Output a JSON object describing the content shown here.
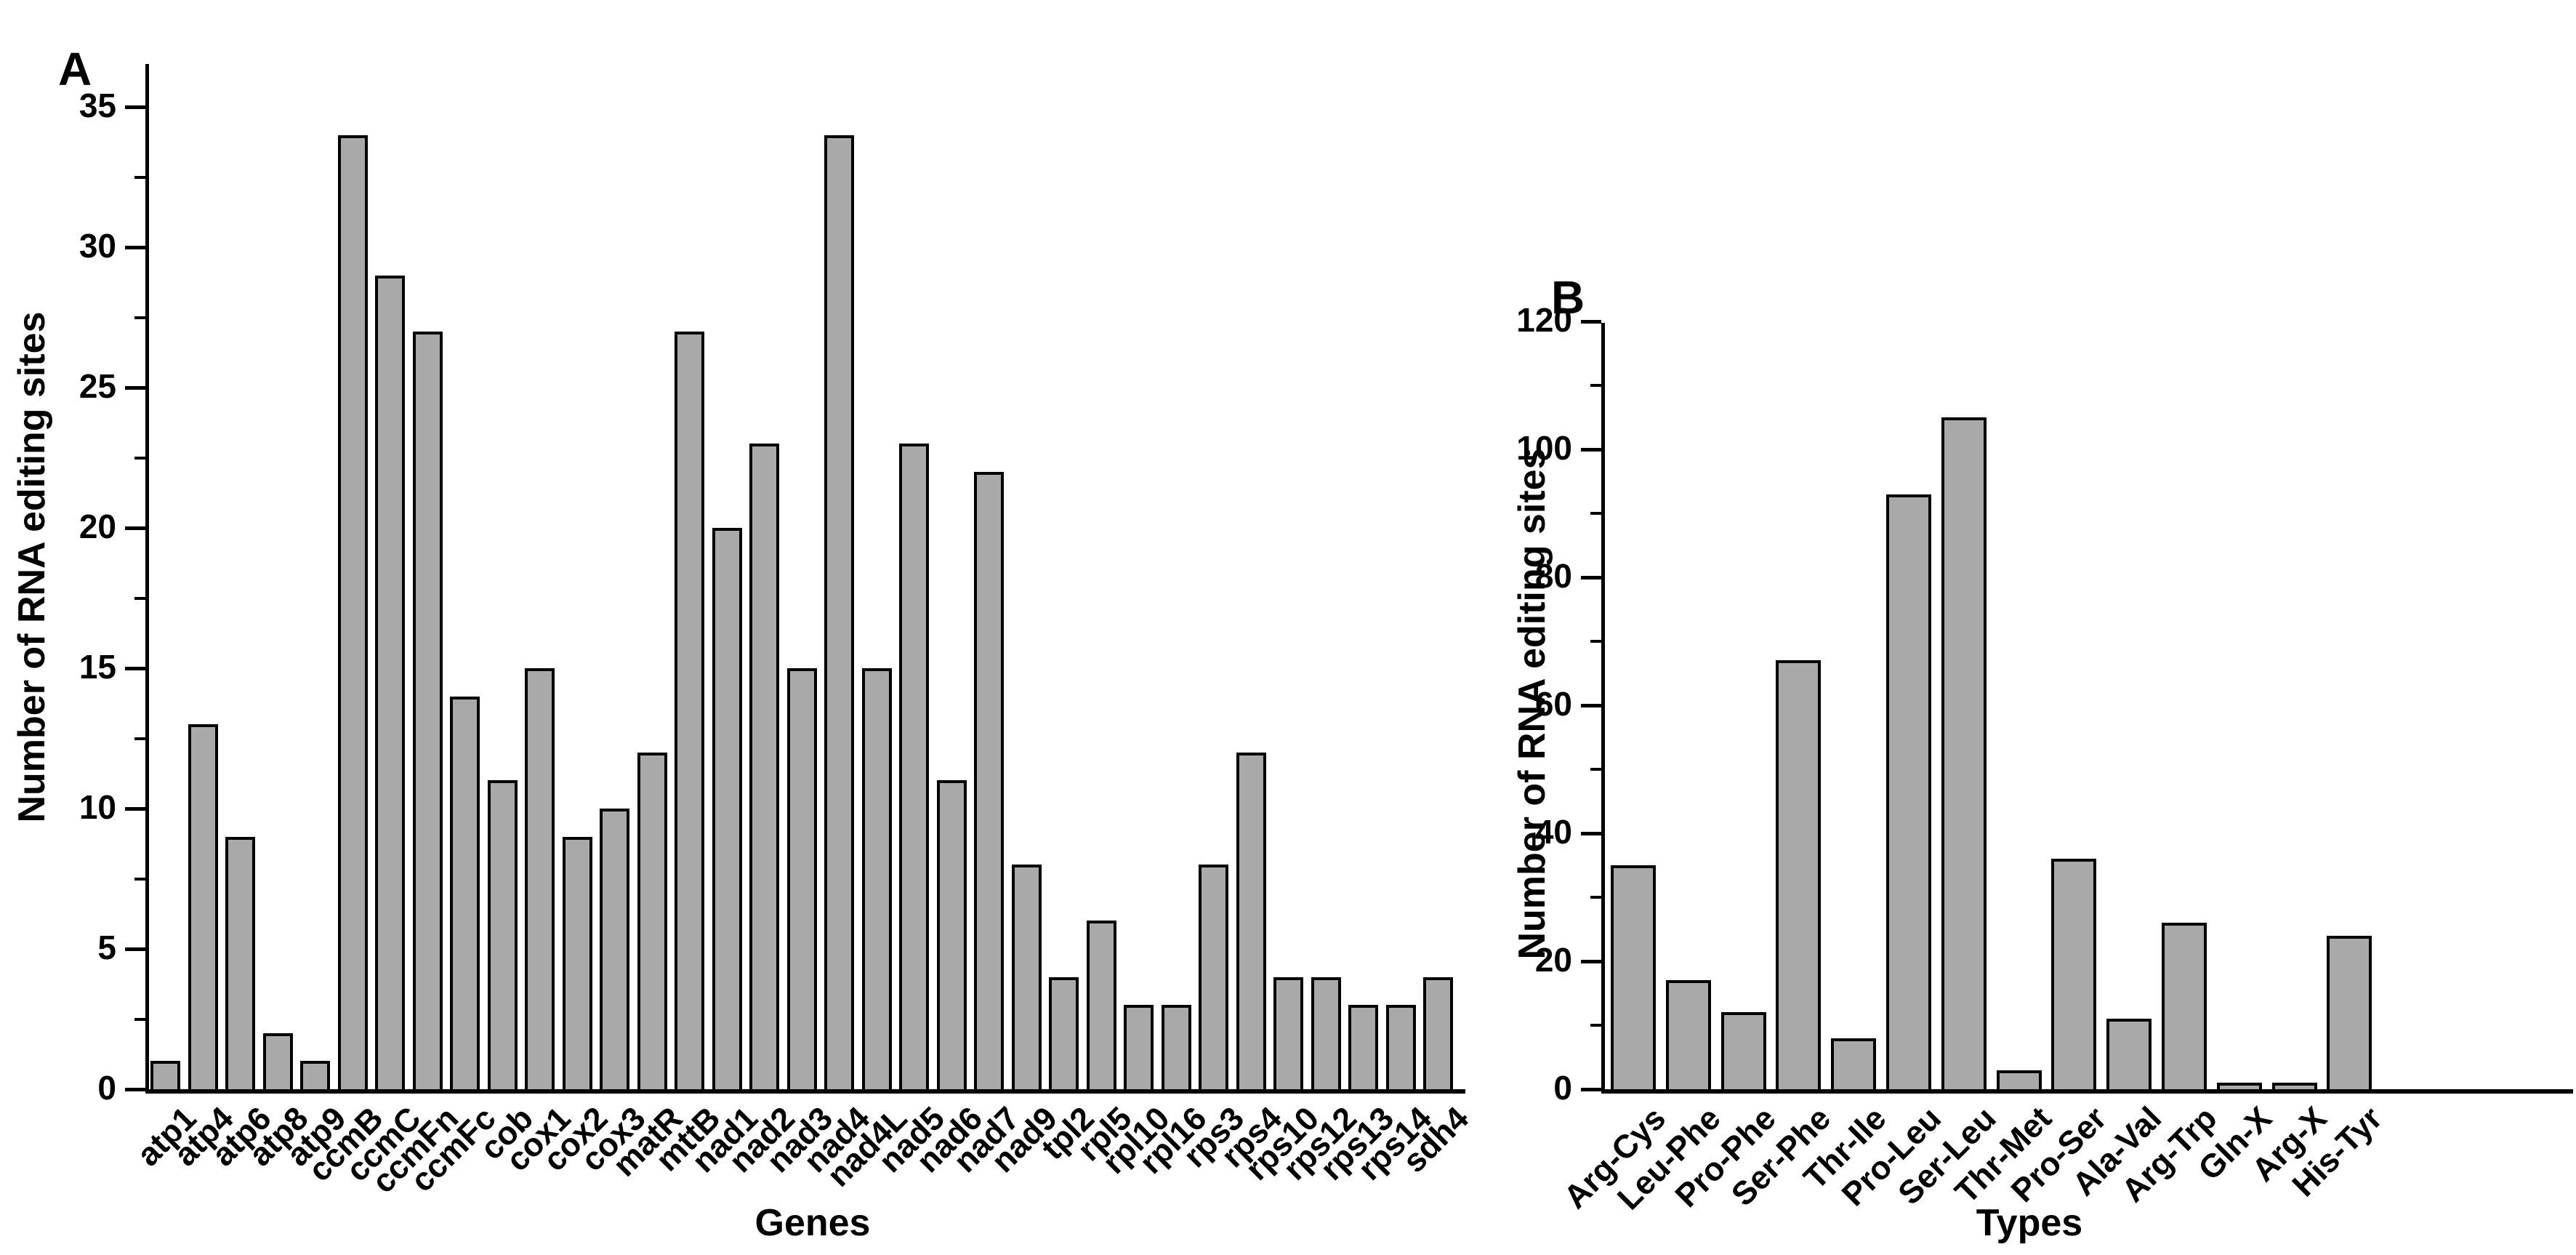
{
  "figure": {
    "background_color": "#ffffff",
    "bar_fill_color": "#a9a9a9",
    "bar_border_color": "#000000",
    "axis_color": "#000000"
  },
  "chart_data": [
    {
      "type": "bar",
      "panel_label": "A",
      "xlabel": "Genes",
      "ylabel": "Number of RNA editing sites",
      "categories": [
        "atp1",
        "atp4",
        "atp6",
        "atp8",
        "atp9",
        "ccmB",
        "ccmC",
        "ccmFn",
        "ccmFc",
        "cob",
        "cox1",
        "cox2",
        "cox3",
        "matR",
        "mttB",
        "nad1",
        "nad2",
        "nad3",
        "nad4",
        "nad4L",
        "nad5",
        "nad6",
        "nad7",
        "nad9",
        "tpl2",
        "rpl5",
        "rpl10",
        "rpl16",
        "rps3",
        "rps4",
        "rps10",
        "rps12",
        "rps13",
        "rps14",
        "sdh4"
      ],
      "values": [
        1,
        13,
        9,
        2,
        1,
        34,
        29,
        27,
        14,
        11,
        15,
        9,
        10,
        12,
        27,
        20,
        23,
        15,
        34,
        15,
        23,
        11,
        22,
        8,
        4,
        6,
        3,
        3,
        8,
        12,
        4,
        4,
        3,
        3,
        4
      ],
      "ylim": [
        0,
        36.5
      ],
      "yticks_major": [
        0,
        5,
        10,
        15,
        20,
        25,
        30,
        35
      ],
      "ytick_minor_halfstep": 2.5,
      "grid": false,
      "legend": null,
      "bar_orientation": "vertical",
      "x_tick_label_rotation_deg": 45
    },
    {
      "type": "bar",
      "panel_label": "B",
      "xlabel": "Types",
      "ylabel": "Number of RNA editing sites",
      "categories": [
        "Arg-Cys",
        "Leu-Phe",
        "Pro-Phe",
        "Ser-Phe",
        "Thr-Ile",
        "Pro-Leu",
        "Ser-Leu",
        "Thr-Met",
        "Pro-Ser",
        "Ala-Val",
        "Arg-Trp",
        "Gln-X",
        "Arg-X",
        "His-Tyr"
      ],
      "values": [
        35,
        17,
        12,
        67,
        8,
        93,
        105,
        3,
        36,
        11,
        26,
        1,
        1,
        24
      ],
      "ylim": [
        0,
        120
      ],
      "yticks_major": [
        0,
        20,
        40,
        60,
        80,
        100,
        120
      ],
      "ytick_minor_halfstep": 10,
      "grid": false,
      "legend": null,
      "bar_orientation": "vertical",
      "x_tick_label_rotation_deg": 45
    }
  ]
}
